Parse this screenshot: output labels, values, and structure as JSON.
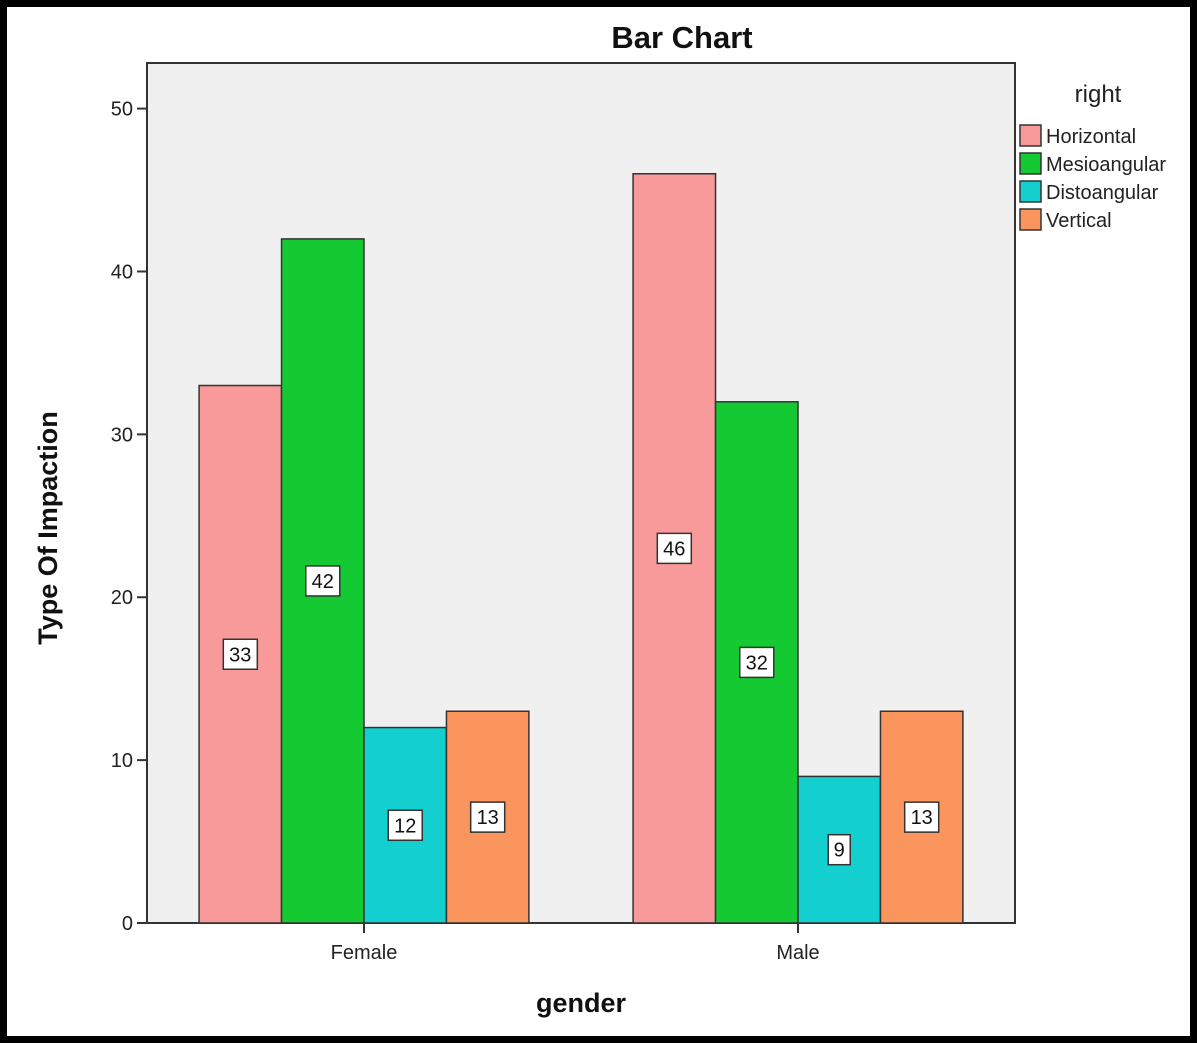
{
  "chart_data": {
    "type": "bar",
    "title": "Bar Chart",
    "xlabel": "gender",
    "ylabel": "Type Of Impaction",
    "categories": [
      "Female",
      "Male"
    ],
    "ylim": [
      0,
      52.8
    ],
    "yticks": [
      "0",
      "10",
      "20",
      "30",
      "40",
      "50"
    ],
    "grid": false,
    "legend": {
      "title": "right",
      "placement": "right"
    },
    "series": [
      {
        "name": "Horizontal",
        "color": "#f99a9a",
        "values": [
          33,
          46
        ]
      },
      {
        "name": "Mesioangular",
        "color": "#15c932",
        "values": [
          42,
          32
        ]
      },
      {
        "name": "Distoangular",
        "color": "#14cfcf",
        "values": [
          12,
          9
        ]
      },
      {
        "name": "Vertical",
        "color": "#fb955e",
        "values": [
          13,
          13
        ]
      }
    ],
    "data_labels": true
  }
}
